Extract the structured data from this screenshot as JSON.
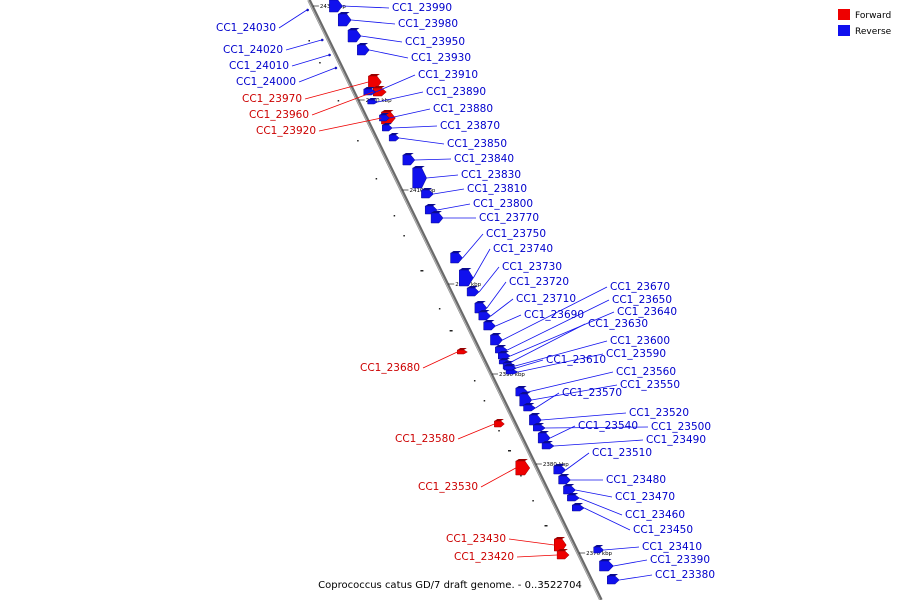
{
  "caption": "Coprococcus catus GD/7 draft genome. - 0..3522704",
  "legend": {
    "forward": {
      "label": "Forward",
      "color": "#ee0000"
    },
    "reverse": {
      "label": "Reverse",
      "color": "#1010ee"
    }
  },
  "ticks": [
    "2430 kbp",
    "2420 kbp",
    "2410 kbp",
    "2400 kbp",
    "2390 kbp",
    "2380 kbp",
    "2370 kbp"
  ],
  "genes": [
    {
      "id": "CC1_24030",
      "strand": "rev"
    },
    {
      "id": "CC1_24020",
      "strand": "rev"
    },
    {
      "id": "CC1_24010",
      "strand": "rev"
    },
    {
      "id": "CC1_24000",
      "strand": "rev"
    },
    {
      "id": "CC1_23970",
      "strand": "fwd"
    },
    {
      "id": "CC1_23960",
      "strand": "fwd"
    },
    {
      "id": "CC1_23920",
      "strand": "fwd"
    },
    {
      "id": "CC1_23990",
      "strand": "rev"
    },
    {
      "id": "CC1_23980",
      "strand": "rev"
    },
    {
      "id": "CC1_23950",
      "strand": "rev"
    },
    {
      "id": "CC1_23930",
      "strand": "rev"
    },
    {
      "id": "CC1_23910",
      "strand": "rev"
    },
    {
      "id": "CC1_23890",
      "strand": "rev"
    },
    {
      "id": "CC1_23880",
      "strand": "rev"
    },
    {
      "id": "CC1_23870",
      "strand": "rev"
    },
    {
      "id": "CC1_23850",
      "strand": "rev"
    },
    {
      "id": "CC1_23840",
      "strand": "rev"
    },
    {
      "id": "CC1_23830",
      "strand": "rev"
    },
    {
      "id": "CC1_23810",
      "strand": "rev"
    },
    {
      "id": "CC1_23800",
      "strand": "rev"
    },
    {
      "id": "CC1_23770",
      "strand": "rev"
    },
    {
      "id": "CC1_23750",
      "strand": "rev"
    },
    {
      "id": "CC1_23740",
      "strand": "rev"
    },
    {
      "id": "CC1_23730",
      "strand": "rev"
    },
    {
      "id": "CC1_23720",
      "strand": "rev"
    },
    {
      "id": "CC1_23710",
      "strand": "rev"
    },
    {
      "id": "CC1_23690",
      "strand": "rev"
    },
    {
      "id": "CC1_23670",
      "strand": "rev"
    },
    {
      "id": "CC1_23650",
      "strand": "rev"
    },
    {
      "id": "CC1_23640",
      "strand": "rev"
    },
    {
      "id": "CC1_23630",
      "strand": "rev"
    },
    {
      "id": "CC1_23600",
      "strand": "rev"
    },
    {
      "id": "CC1_23590",
      "strand": "rev"
    },
    {
      "id": "CC1_23610",
      "strand": "rev"
    },
    {
      "id": "CC1_23680",
      "strand": "fwd"
    },
    {
      "id": "CC1_23560",
      "strand": "rev"
    },
    {
      "id": "CC1_23550",
      "strand": "rev"
    },
    {
      "id": "CC1_23570",
      "strand": "rev"
    },
    {
      "id": "CC1_23520",
      "strand": "rev"
    },
    {
      "id": "CC1_23500",
      "strand": "rev"
    },
    {
      "id": "CC1_23540",
      "strand": "rev"
    },
    {
      "id": "CC1_23490",
      "strand": "rev"
    },
    {
      "id": "CC1_23580",
      "strand": "fwd"
    },
    {
      "id": "CC1_23510",
      "strand": "rev"
    },
    {
      "id": "CC1_23480",
      "strand": "rev"
    },
    {
      "id": "CC1_23530",
      "strand": "fwd"
    },
    {
      "id": "CC1_23470",
      "strand": "rev"
    },
    {
      "id": "CC1_23460",
      "strand": "rev"
    },
    {
      "id": "CC1_23450",
      "strand": "rev"
    },
    {
      "id": "CC1_23430",
      "strand": "fwd"
    },
    {
      "id": "CC1_23410",
      "strand": "rev"
    },
    {
      "id": "CC1_23420",
      "strand": "fwd"
    },
    {
      "id": "CC1_23390",
      "strand": "rev"
    },
    {
      "id": "CC1_23380",
      "strand": "rev"
    }
  ]
}
